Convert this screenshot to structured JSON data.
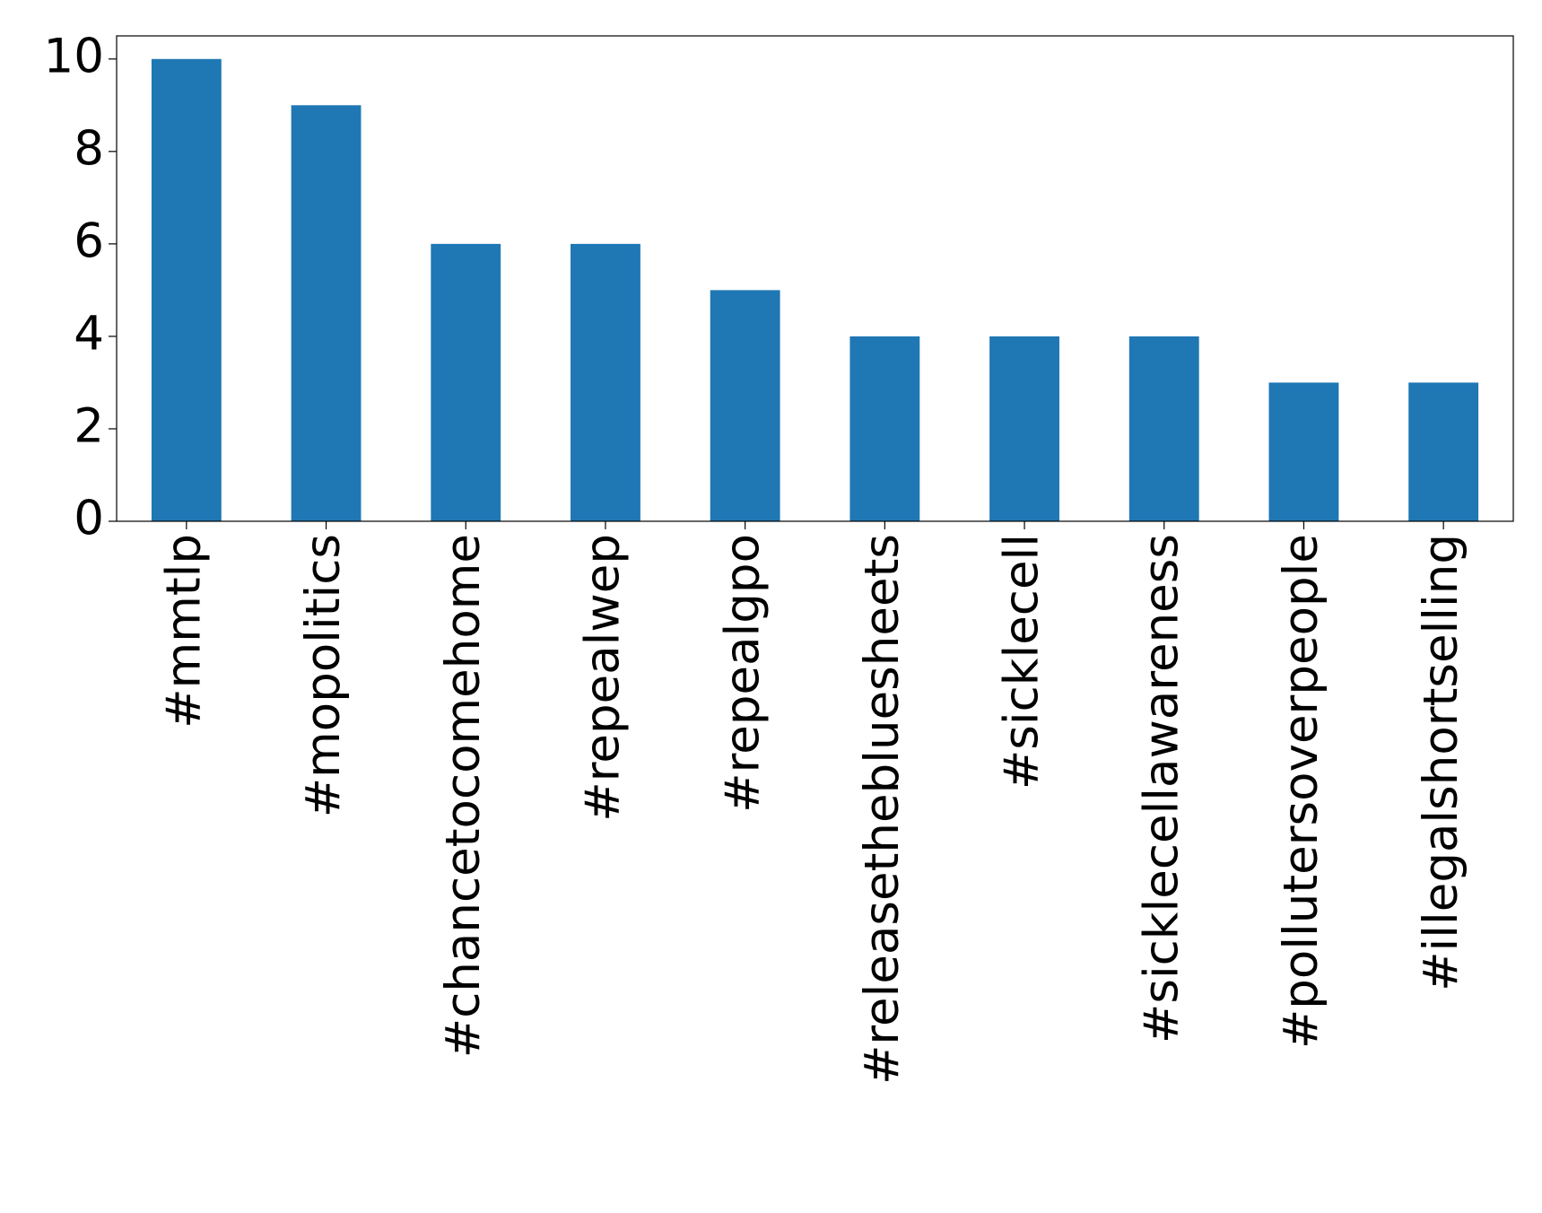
{
  "chart_data": {
    "type": "bar",
    "categories": [
      "#mmtlp",
      "#mopolitics",
      "#chancetocomehome",
      "#repealwep",
      "#repealgpo",
      "#releasetheblueshеets",
      "#sicklecell",
      "#sicklecellawareness",
      "#pollutersoverpeople",
      "#illegalshortselling"
    ],
    "values": [
      10,
      9,
      6,
      6,
      5,
      4,
      4,
      4,
      3,
      3
    ],
    "color": "#1f77b4",
    "ylim": [
      0,
      10.5
    ],
    "yticks": [
      0,
      2,
      4,
      6,
      8,
      10
    ],
    "grid": false
  }
}
